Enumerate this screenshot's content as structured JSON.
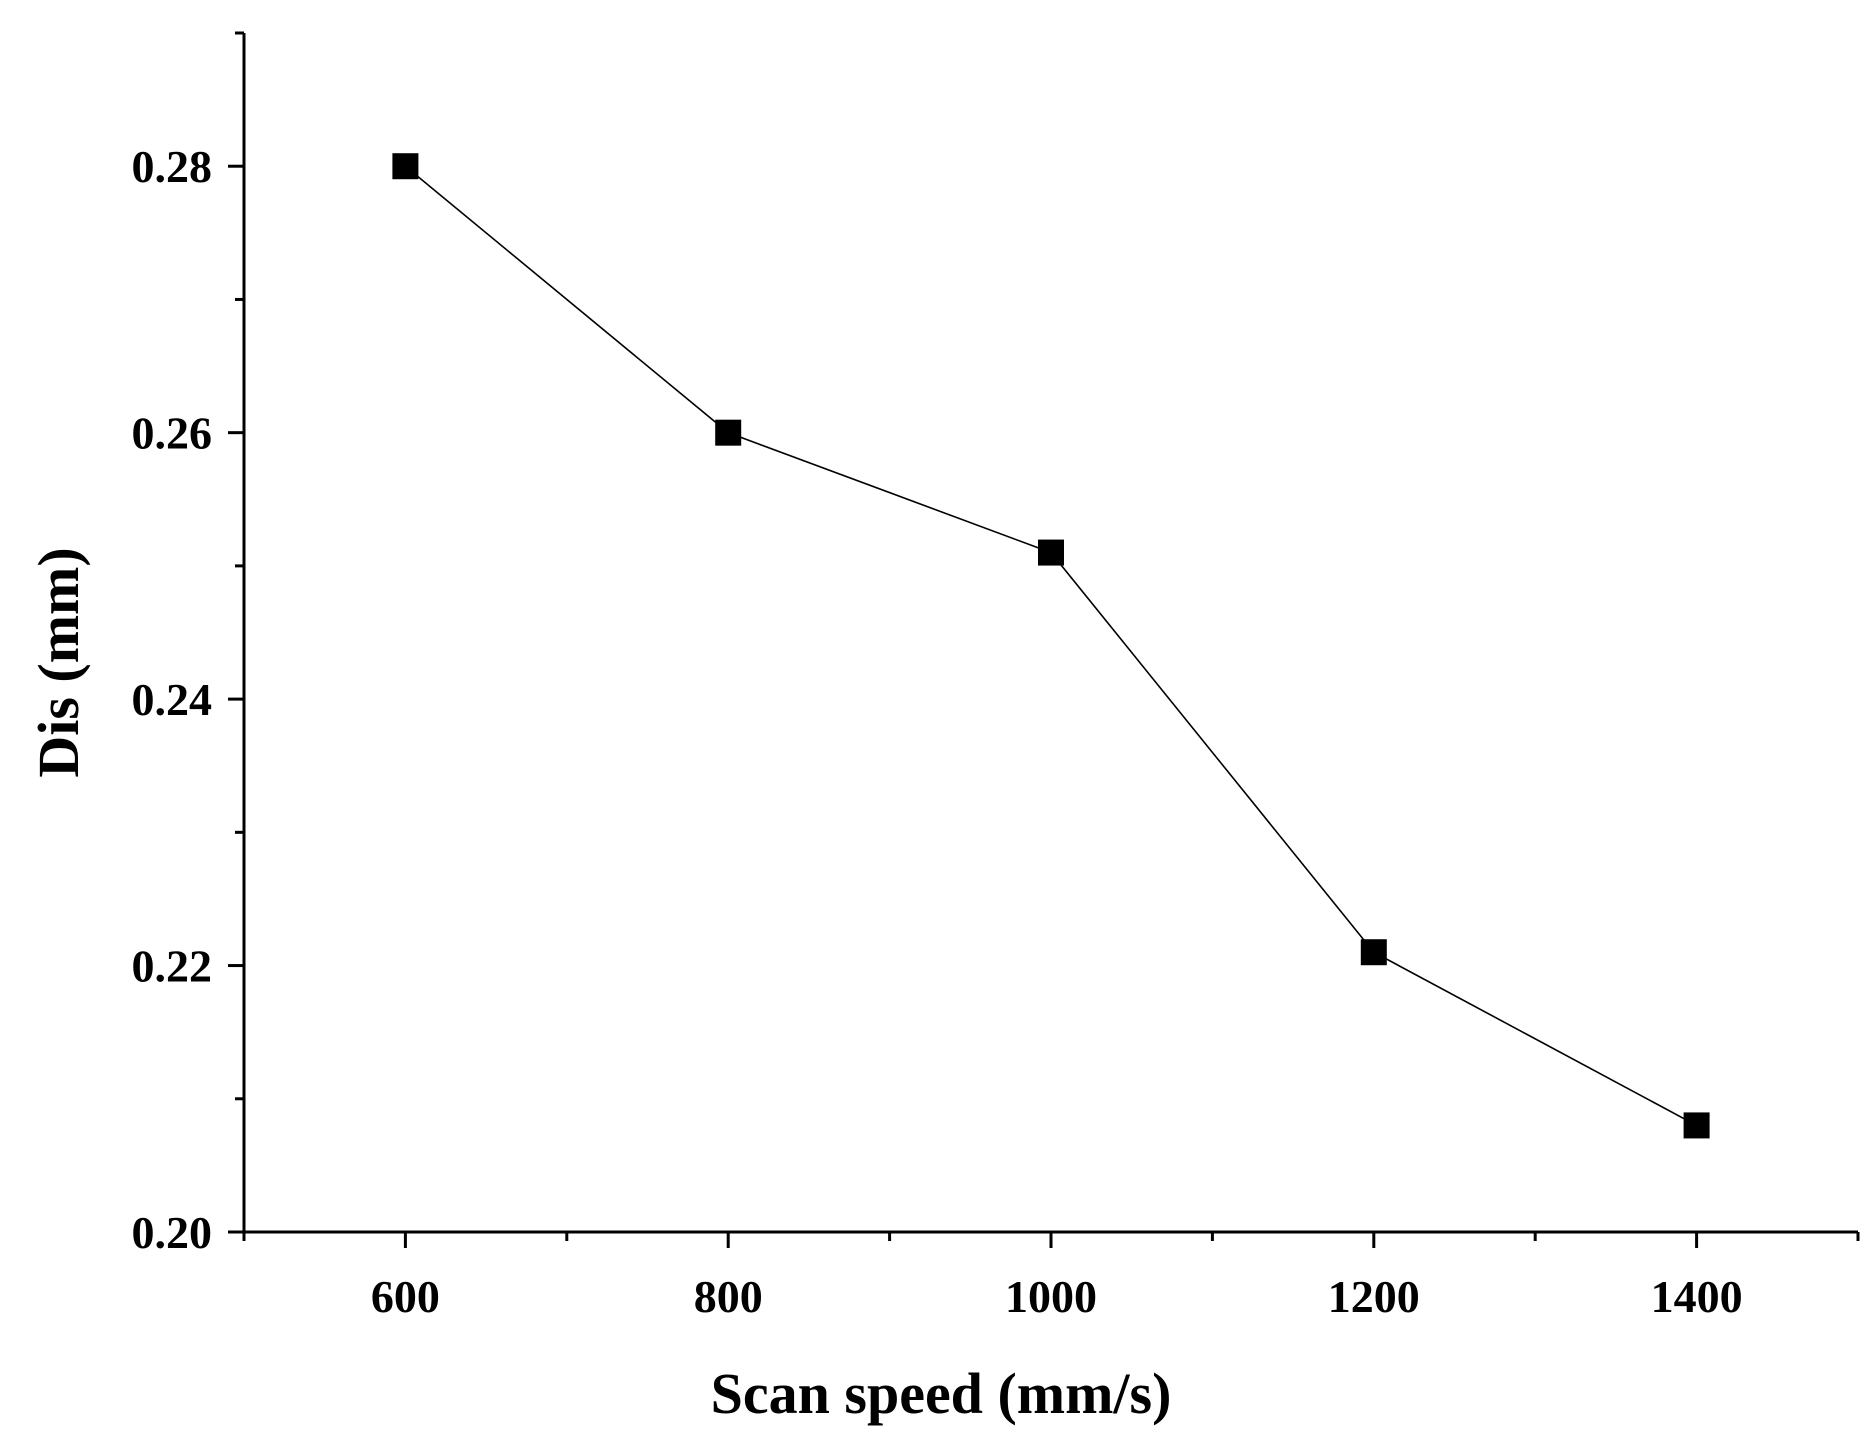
{
  "chart_data": {
    "type": "line",
    "title": "",
    "xlabel": "Scan speed (mm/s)",
    "ylabel": "Dis (mm)",
    "x": [
      600,
      800,
      1000,
      1200,
      1400
    ],
    "series": [
      {
        "values": [
          0.28,
          0.26,
          0.251,
          0.221,
          0.208
        ],
        "marker": "square",
        "color": "#000000"
      }
    ],
    "xlim": [
      500,
      1500
    ],
    "ylim": [
      0.2,
      0.29
    ],
    "x_ticks": [
      600,
      800,
      1000,
      1200,
      1400
    ],
    "x_tick_labels": [
      "600",
      "800",
      "1000",
      "1200",
      "1400"
    ],
    "x_minor_ticks": [
      500,
      700,
      900,
      1100,
      1300,
      1500
    ],
    "y_ticks": [
      0.2,
      0.22,
      0.24,
      0.26,
      0.28
    ],
    "y_tick_labels": [
      "0.20",
      "0.22",
      "0.24",
      "0.26",
      "0.28"
    ],
    "y_minor_ticks": [
      0.21,
      0.23,
      0.25,
      0.27,
      0.29
    ],
    "grid": false,
    "legend": "none"
  }
}
